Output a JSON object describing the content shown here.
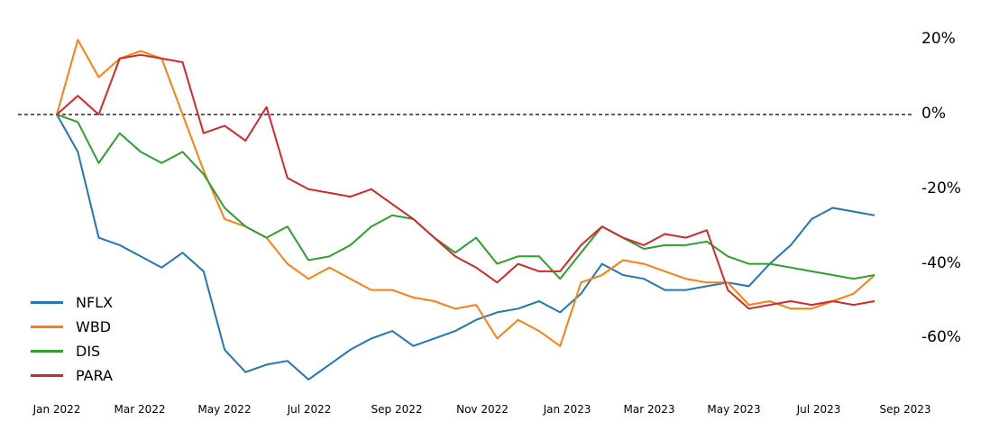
{
  "chart_data": {
    "type": "line",
    "title": "",
    "xlabel": "",
    "ylabel": "",
    "ylim": [
      -75,
      25
    ],
    "grid": false,
    "legend_position": "lower left",
    "reference_line": {
      "y": 0,
      "style": "dashed",
      "color": "#000000"
    },
    "x_tick_labels": [
      "Jan 2022",
      "Mar 2022",
      "May 2022",
      "Jul 2022",
      "Sep 2022",
      "Nov 2022",
      "Jan 2023",
      "Mar 2023",
      "May 2023",
      "Jul 2023",
      "Sep 2023"
    ],
    "y_tick_labels": [
      "20%",
      "0%",
      "-20%",
      "-40%",
      "-60%"
    ],
    "y_ticks": [
      20,
      0,
      -20,
      -40,
      -60
    ],
    "x": [
      "2022-01",
      "2022-01-15",
      "2022-02",
      "2022-02-15",
      "2022-03",
      "2022-03-15",
      "2022-04",
      "2022-04-15",
      "2022-05",
      "2022-05-15",
      "2022-06",
      "2022-06-15",
      "2022-07",
      "2022-07-15",
      "2022-08",
      "2022-08-15",
      "2022-09",
      "2022-09-15",
      "2022-10",
      "2022-10-15",
      "2022-11",
      "2022-11-15",
      "2022-12",
      "2022-12-15",
      "2023-01",
      "2023-01-15",
      "2023-02",
      "2023-02-15",
      "2023-03",
      "2023-03-15",
      "2023-04",
      "2023-04-15",
      "2023-05",
      "2023-05-15",
      "2023-06",
      "2023-06-15",
      "2023-07",
      "2023-07-15",
      "2023-08",
      "2023-08-15"
    ],
    "series": [
      {
        "name": "NFLX",
        "color": "#1f77b4",
        "values": [
          0,
          -10,
          -33,
          -35,
          -38,
          -41,
          -37,
          -42,
          -63,
          -69,
          -67,
          -66,
          -71,
          -67,
          -63,
          -60,
          -58,
          -62,
          -60,
          -58,
          -55,
          -53,
          -52,
          -50,
          -53,
          -48,
          -40,
          -43,
          -44,
          -47,
          -47,
          -46,
          -45,
          -46,
          -40,
          -35,
          -28,
          -25,
          -26,
          -27
        ]
      },
      {
        "name": "WBD",
        "color": "#ff7f0e",
        "values": [
          0,
          20,
          10,
          15,
          17,
          15,
          0,
          -15,
          -28,
          -30,
          -33,
          -40,
          -44,
          -41,
          -44,
          -47,
          -47,
          -49,
          -50,
          -52,
          -51,
          -60,
          -55,
          -58,
          -62,
          -45,
          -43,
          -39,
          -40,
          -42,
          -44,
          -45,
          -45,
          -51,
          -50,
          -52,
          -52,
          -50,
          -48,
          -43
        ]
      },
      {
        "name": "DIS",
        "color": "#2ca02c",
        "values": [
          0,
          -2,
          -13,
          -5,
          -10,
          -13,
          -10,
          -16,
          -25,
          -30,
          -33,
          -30,
          -39,
          -38,
          -35,
          -30,
          -27,
          -28,
          -33,
          -37,
          -33,
          -40,
          -38,
          -38,
          -44,
          -37,
          -30,
          -33,
          -36,
          -35,
          -35,
          -34,
          -38,
          -40,
          -40,
          -41,
          -42,
          -43,
          -44,
          -43
        ]
      },
      {
        "name": "PARA",
        "color": "#d62728",
        "values": [
          0,
          5,
          0,
          15,
          16,
          15,
          14,
          -5,
          -3,
          -7,
          2,
          -17,
          -20,
          -21,
          -22,
          -20,
          -24,
          -28,
          -33,
          -38,
          -41,
          -45,
          -40,
          -42,
          -42,
          -35,
          -30,
          -33,
          -35,
          -32,
          -33,
          -31,
          -47,
          -52,
          -51,
          -50,
          -51,
          -50,
          -51,
          -50
        ]
      }
    ]
  },
  "legend": {
    "items": [
      {
        "label": "NFLX",
        "color": "#1f77b4"
      },
      {
        "label": "WBD",
        "color": "#ff7f0e"
      },
      {
        "label": "DIS",
        "color": "#2ca02c"
      },
      {
        "label": "PARA",
        "color": "#d62728"
      }
    ]
  }
}
